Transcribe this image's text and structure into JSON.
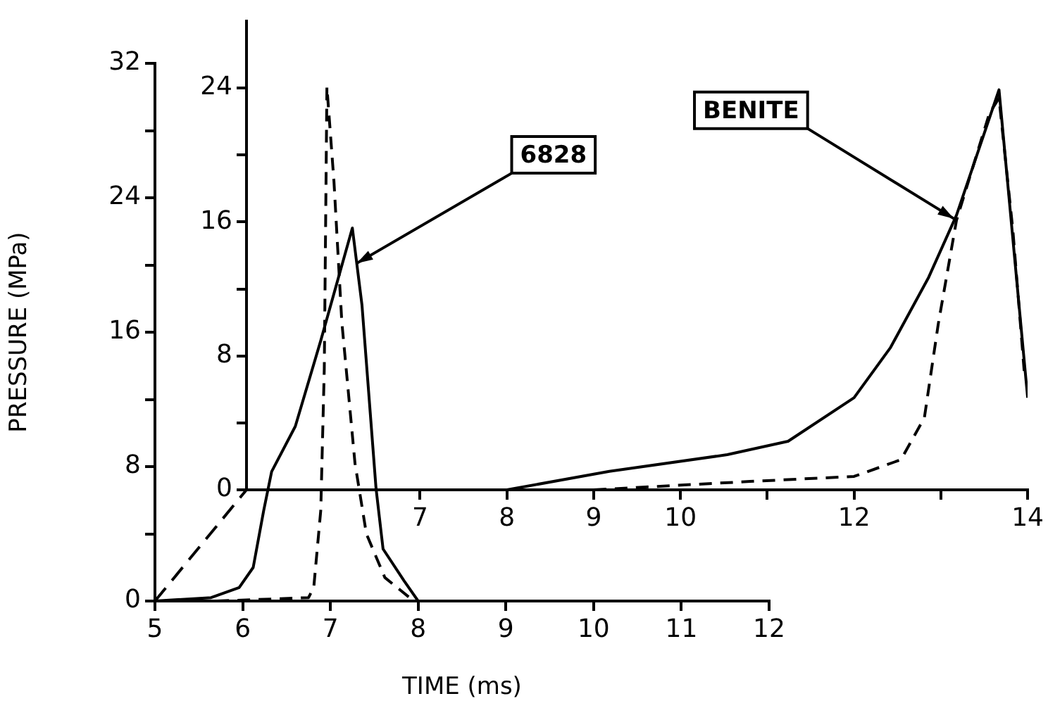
{
  "chart_data": [
    {
      "type": "line",
      "xlabel": "TIME (ms)",
      "ylabel": "PRESSURE (MPa)",
      "xlim": [
        5,
        12
      ],
      "xticks": [
        5,
        6,
        7,
        8,
        9,
        10,
        11,
        12
      ],
      "ylim": [
        0,
        32
      ],
      "yticks": [
        0,
        {
          "value": 4,
          "label": null
        },
        8,
        {
          "value": 12,
          "label": null
        },
        16,
        {
          "value": 20,
          "label": null
        },
        24,
        {
          "value": 28,
          "label": null
        },
        32
      ],
      "marker": "none",
      "series": [
        {
          "color": "#000000",
          "line_style": "solid",
          "x": [
            5,
            5.64,
            5.96,
            6.12,
            6.24,
            6.33,
            6.6,
            6.89,
            7.25,
            7.36,
            7.52,
            7.6,
            7.84,
            8.0
          ],
          "values": [
            0,
            0.2,
            0.8,
            2.0,
            5.4,
            7.7,
            10.4,
            15.5,
            22.2,
            17.6,
            6.7,
            3.1,
            1.2,
            0
          ]
        },
        {
          "color": "#000000",
          "line_style": "dashed",
          "x": [
            5.7,
            6.75,
            6.81,
            6.89,
            6.93,
            6.96,
            7.04,
            7.13,
            7.28,
            7.41,
            7.62,
            7.95
          ],
          "values": [
            0,
            0.2,
            0.8,
            5.4,
            13.8,
            30.6,
            25,
            16.6,
            8.2,
            4.0,
            1.4,
            0
          ]
        }
      ],
      "annotations": [
        {
          "text": "6828",
          "x": 7.3,
          "y": 20.1
        }
      ]
    },
    {
      "type": "line",
      "xlim": [
        5,
        14
      ],
      "xticks": [
        7,
        8,
        9,
        10,
        {
          "value": 11,
          "label": null
        },
        12,
        {
          "value": 13,
          "label": null
        },
        14
      ],
      "ylim": [
        0,
        28
      ],
      "yticks": [
        0,
        {
          "value": 4,
          "label": null
        },
        8,
        {
          "value": 12,
          "label": null
        },
        16,
        {
          "value": 20,
          "label": null
        },
        24
      ],
      "marker": "none",
      "series": [
        {
          "color": "#000000",
          "line_style": "solid",
          "x": [
            8,
            9.18,
            10.54,
            11.24,
            12.0,
            12.42,
            12.86,
            13.18,
            13.67,
            14.0
          ],
          "values": [
            0,
            1.1,
            2.1,
            2.9,
            5.5,
            8.5,
            12.7,
            16.4,
            23.9,
            5.5
          ]
        },
        {
          "color": "#000000",
          "line_style": "dashed",
          "x": [
            9,
            10.8,
            12.0,
            12.54,
            12.81,
            12.97,
            13.18,
            13.56,
            13.67,
            13.83,
            13.96
          ],
          "values": [
            0,
            0.5,
            0.8,
            1.8,
            4.3,
            9.9,
            16.1,
            22.5,
            23.4,
            15.5,
            7.1
          ]
        }
      ],
      "annotations": [
        {
          "text": "BENITE",
          "x": 13.15,
          "y": 16.2
        }
      ]
    }
  ]
}
